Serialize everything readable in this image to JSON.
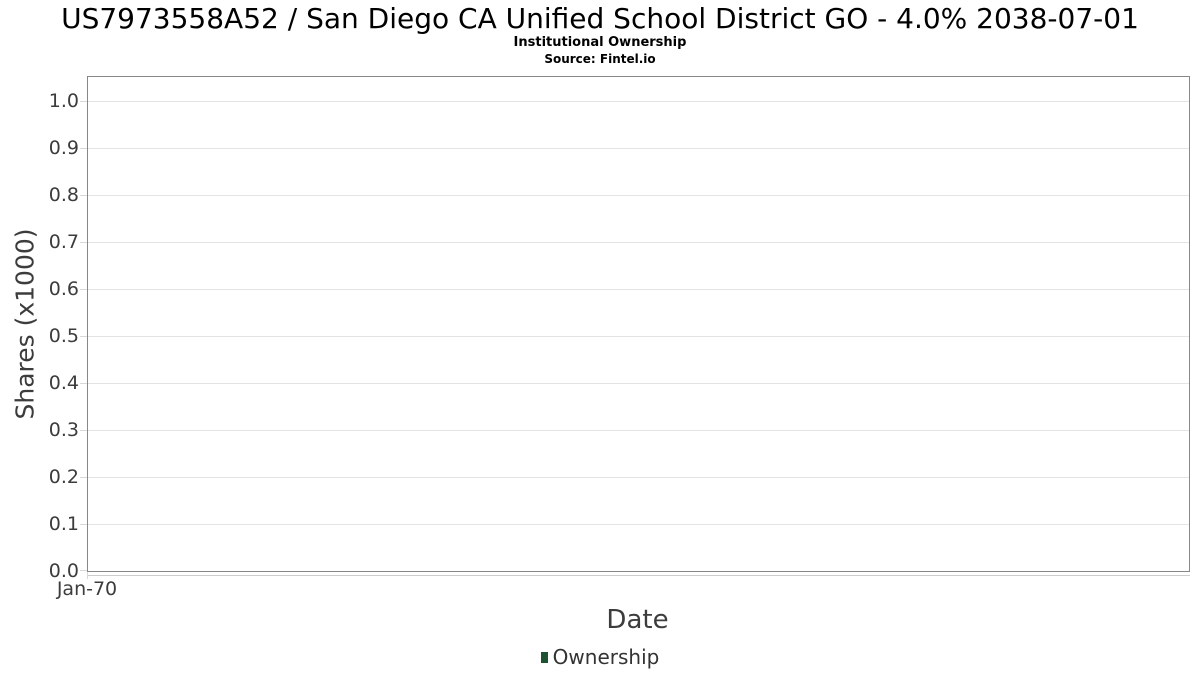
{
  "chart_data": {
    "type": "line",
    "title": "US7973558A52 / San Diego CA Unified School District GO - 4.0% 2038-07-01",
    "subtitle": "Institutional Ownership",
    "source": "Source: Fintel.io",
    "xlabel": "Date",
    "ylabel": "Shares (x1000)",
    "ylim": [
      0,
      1.05
    ],
    "yticks": [
      0.0,
      0.1,
      0.2,
      0.3,
      0.4,
      0.5,
      0.6,
      0.7,
      0.8,
      0.9,
      1.0
    ],
    "ytick_labels": [
      "0.0",
      "0.1",
      "0.2",
      "0.3",
      "0.4",
      "0.5",
      "0.6",
      "0.7",
      "0.8",
      "0.9",
      "1.0"
    ],
    "xtick_labels": [
      "Jan-70"
    ],
    "grid": true,
    "legend": {
      "position": "bottom",
      "entries": [
        {
          "label": "Ownership",
          "color": "#1d5330"
        }
      ]
    },
    "series": [
      {
        "name": "Ownership",
        "x": [],
        "values": []
      }
    ],
    "colors": {
      "axis_border": "#888888",
      "gridline": "#e4e4e4",
      "tick": "#d8d8d8",
      "baseline": "#cccccc",
      "axis_text": "#3c3c3c",
      "title_text": "#000000"
    }
  }
}
